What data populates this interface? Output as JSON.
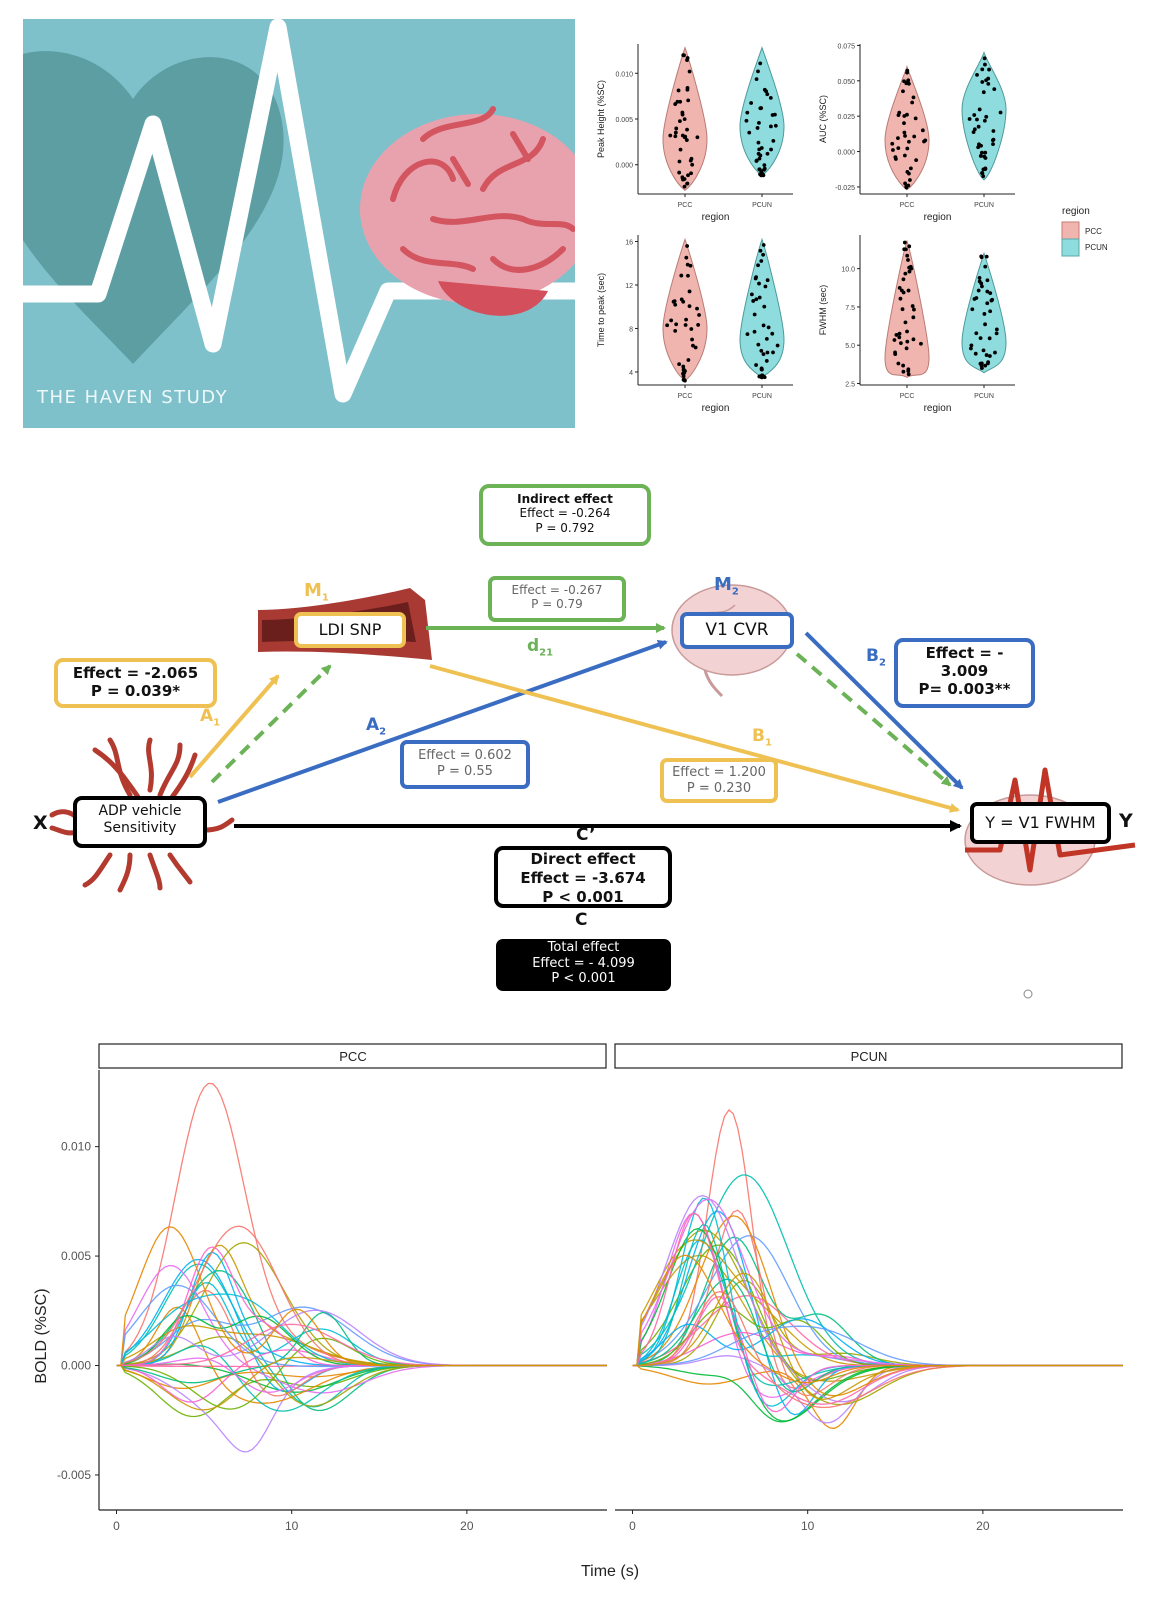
{
  "logo": {
    "title": "THE HAVEN STUDY"
  },
  "violin": {
    "legend_title": "region",
    "legend_items": [
      "PCC",
      "PCUN"
    ],
    "xlabel": "region",
    "colors": {
      "PCC": "#f0b5ae",
      "PCUN": "#8edcdd"
    }
  },
  "chart_data": [
    {
      "type": "violin",
      "ylabel": "Peak Height (%SC)",
      "xlabel": "region",
      "categories": [
        "PCC",
        "PCUN"
      ],
      "ytick_labels": [
        "0.000",
        "0.005",
        "0.010"
      ],
      "yticks": [
        0.0,
        0.005,
        0.01
      ],
      "ylim": [
        -0.0032,
        0.0132
      ],
      "series": [
        {
          "name": "PCC",
          "min": -0.0028,
          "max": 0.0128,
          "median": 0.0028
        },
        {
          "name": "PCUN",
          "min": -0.0012,
          "max": 0.0128,
          "median": 0.0042
        }
      ]
    },
    {
      "type": "violin",
      "ylabel": "AUC (%SC)",
      "xlabel": "region",
      "categories": [
        "PCC",
        "PCUN"
      ],
      "ytick_labels": [
        "-0.025",
        "0.000",
        "0.025",
        "0.050",
        "0.075"
      ],
      "yticks": [
        -0.025,
        0.0,
        0.025,
        0.05,
        0.075
      ],
      "ylim": [
        -0.03,
        0.076
      ],
      "series": [
        {
          "name": "PCC",
          "min": -0.027,
          "max": 0.06,
          "median": 0.008
        },
        {
          "name": "PCUN",
          "min": -0.02,
          "max": 0.07,
          "median": 0.03
        }
      ]
    },
    {
      "type": "violin",
      "ylabel": "Time to peak (sec)",
      "xlabel": "region",
      "categories": [
        "PCC",
        "PCUN"
      ],
      "ytick_labels": [
        "4",
        "8",
        "12",
        "16"
      ],
      "yticks": [
        4,
        8,
        12,
        16
      ],
      "ylim": [
        2.8,
        16.6
      ],
      "series": [
        {
          "name": "PCC",
          "min": 3.2,
          "max": 16.2,
          "median": 8.0
        },
        {
          "name": "PCUN",
          "min": 3.5,
          "max": 16.2,
          "median": 7.0
        }
      ]
    },
    {
      "type": "violin",
      "ylabel": "FWHM (sec)",
      "xlabel": "region",
      "categories": [
        "PCC",
        "PCUN"
      ],
      "ytick_labels": [
        "2.5",
        "5.0",
        "7.5",
        "10.0"
      ],
      "yticks": [
        2.5,
        5.0,
        7.5,
        10.0
      ],
      "ylim": [
        2.4,
        12.2
      ],
      "series": [
        {
          "name": "PCC",
          "min": 2.9,
          "max": 11.8,
          "median": 4.2
        },
        {
          "name": "PCUN",
          "min": 3.2,
          "max": 11.0,
          "median": 5.2
        }
      ]
    },
    {
      "type": "line",
      "facets": [
        "PCC",
        "PCUN"
      ],
      "ylabel": "BOLD (%SC)",
      "xlabel": "Time (s)",
      "xlim": [
        -1,
        28
      ],
      "ylim": [
        -0.0066,
        0.0135
      ],
      "xticks": [
        0,
        10,
        20
      ],
      "xtick_labels": [
        "0",
        "10",
        "20"
      ],
      "yticks": [
        -0.005,
        0.0,
        0.005,
        0.01
      ],
      "ytick_labels": [
        "-0.005",
        "0.000",
        "0.005",
        "0.010"
      ],
      "note": "overlaid per-participant hemodynamic response curves, approx. 33 per facet"
    }
  ],
  "mediation": {
    "indirect_title": "Indirect effect",
    "indirect_effect": "Effect = -0.264",
    "indirect_p": "P = 0.792",
    "m1_label_main": "M",
    "m1_label_sub": "1",
    "m1_box": "LDI SNP",
    "m2_label_main": "M",
    "m2_label_sub": "2",
    "m2_box": "V1 CVR",
    "d21_effect": "Effect = -0.267",
    "d21_p": "P = 0.79",
    "d21_label_main": "d",
    "d21_label_sub": "21",
    "a1_effect": "Effect = -2.065",
    "a1_p": "P = 0.039*",
    "a1_label_main": "A",
    "a1_label_sub": "1",
    "a2_label_main": "A",
    "a2_label_sub": "2",
    "a2_effect": "Effect = 0.602",
    "a2_p": "P = 0.55",
    "b1_label_main": "B",
    "b1_label_sub": "1",
    "b1_effect": "Effect = 1.200",
    "b1_p": "P = 0.230",
    "b2_label_main": "B",
    "b2_label_sub": "2",
    "b2_effect_l1": "Effect = -",
    "b2_effect_l2": "3.009",
    "b2_p": "P= 0.003**",
    "x_label": "X",
    "x_box_l1": "ADP vehicle",
    "x_box_l2": "Sensitivity",
    "y_label": "Y",
    "y_box": "Y = V1 FWHM",
    "c_prime_label": "C’",
    "direct_title": "Direct effect",
    "direct_effect": "Effect = -3.674",
    "direct_p": "P < 0.001",
    "c_label": "C",
    "total_title": "Total effect",
    "total_effect": "Effect = - 4.099",
    "total_p": "P < 0.001",
    "colors": {
      "yellow": "#eec152",
      "green": "#6cb257",
      "blue": "#3a6cc1",
      "black": "#000000"
    }
  }
}
